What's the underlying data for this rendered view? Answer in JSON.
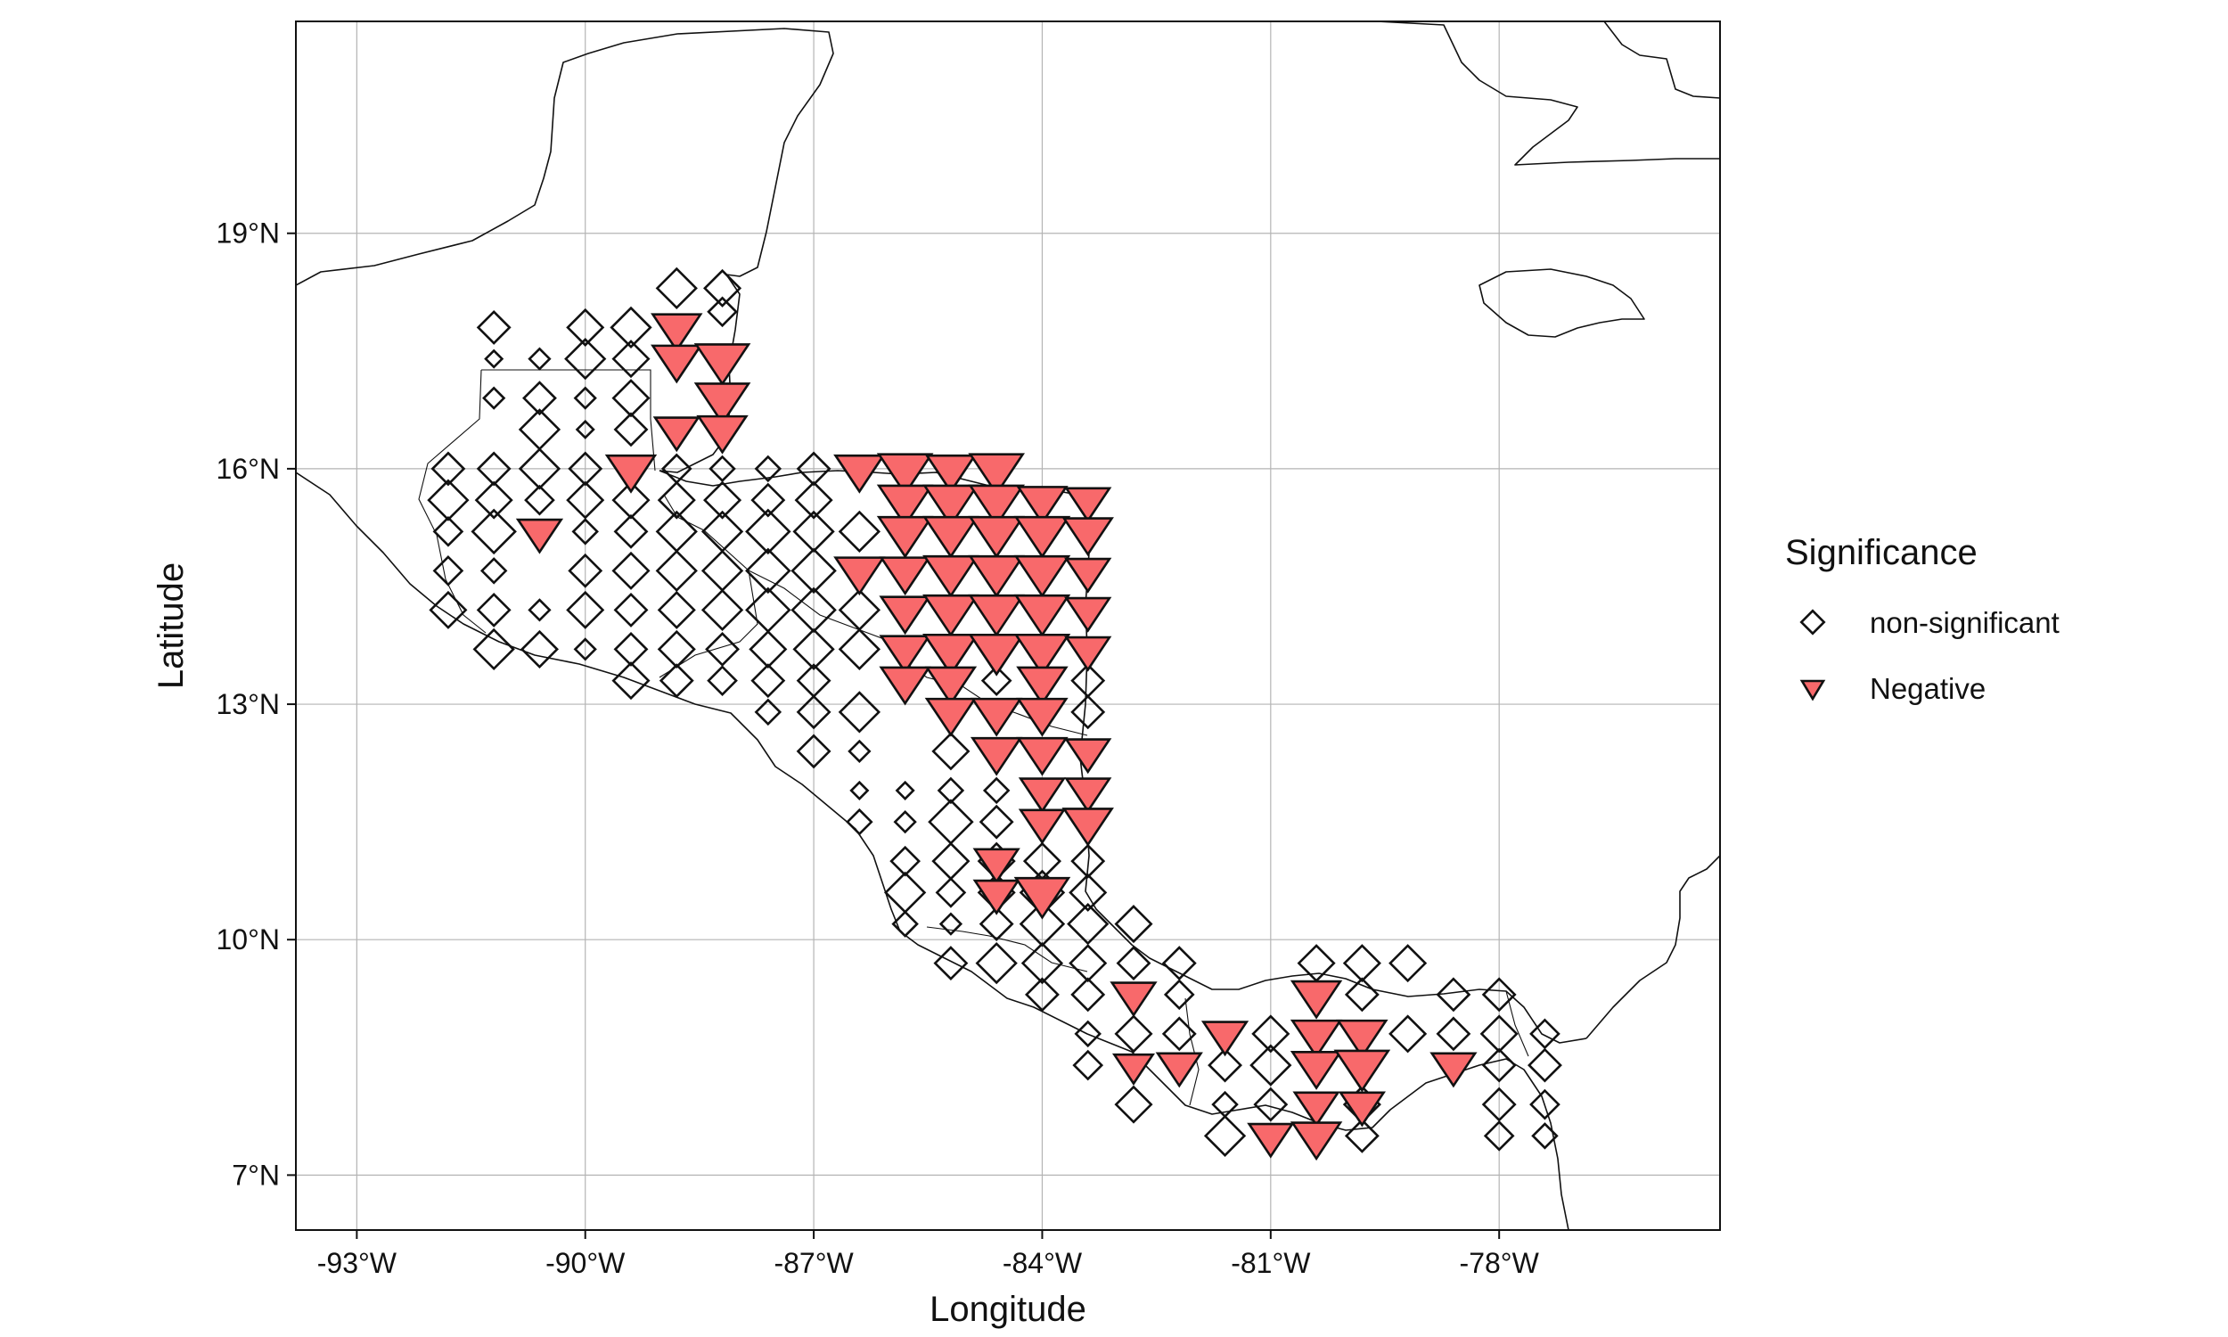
{
  "chart_data": {
    "type": "scatter",
    "xlabel": "Longitude",
    "ylabel": "Latitude",
    "xlim": [
      -93.8,
      -75.1
    ],
    "ylim": [
      6.3,
      21.7
    ],
    "x_ticks": [
      -93,
      -90,
      -87,
      -84,
      -81,
      -78
    ],
    "x_tick_labels": [
      "-93°W",
      "-90°W",
      "-87°W",
      "-84°W",
      "-81°W",
      "-78°W"
    ],
    "y_ticks": [
      7,
      10,
      13,
      16,
      19
    ],
    "y_tick_labels": [
      "7°N",
      "10°N",
      "13°N",
      "16°N",
      "19°N"
    ],
    "grid": true,
    "legend": {
      "title": "Significance",
      "position": "right",
      "entries": [
        {
          "label": "non-significant",
          "shape": "diamond",
          "fill": "none"
        },
        {
          "label": "Negative",
          "shape": "triangle-down",
          "fill": "#F8696B"
        }
      ]
    },
    "colors": {
      "negative": "#F8696B",
      "outline": "#111111",
      "grid": "#b4b4b4"
    },
    "point_size_scale": "magnitude 0.3 (small) to 1.0 (large)",
    "series": [
      {
        "name": "non-significant",
        "shape": "diamond",
        "points": [
          [
            -88.8,
            18.3,
            0.8
          ],
          [
            -88.2,
            18.3,
            0.7
          ],
          [
            -88.2,
            18.0,
            0.5
          ],
          [
            -91.2,
            17.8,
            0.6
          ],
          [
            -90.0,
            17.8,
            0.7
          ],
          [
            -89.4,
            17.8,
            0.8
          ],
          [
            -91.2,
            17.4,
            0.2
          ],
          [
            -90.6,
            17.4,
            0.3
          ],
          [
            -90.0,
            17.4,
            0.8
          ],
          [
            -89.4,
            17.4,
            0.7
          ],
          [
            -91.2,
            16.9,
            0.3
          ],
          [
            -90.6,
            16.9,
            0.6
          ],
          [
            -90.0,
            16.9,
            0.3
          ],
          [
            -89.4,
            16.9,
            0.7
          ],
          [
            -90.6,
            16.5,
            0.8
          ],
          [
            -90.0,
            16.5,
            0.2
          ],
          [
            -89.4,
            16.5,
            0.6
          ],
          [
            -91.8,
            16.0,
            0.6
          ],
          [
            -91.2,
            16.0,
            0.6
          ],
          [
            -90.6,
            16.0,
            0.8
          ],
          [
            -90.0,
            16.0,
            0.6
          ],
          [
            -88.8,
            16.0,
            0.5
          ],
          [
            -88.2,
            16.0,
            0.4
          ],
          [
            -87.6,
            16.0,
            0.4
          ],
          [
            -87.0,
            16.0,
            0.6
          ],
          [
            -91.8,
            15.6,
            0.8
          ],
          [
            -91.2,
            15.6,
            0.7
          ],
          [
            -90.6,
            15.6,
            0.5
          ],
          [
            -90.0,
            15.6,
            0.7
          ],
          [
            -89.4,
            15.6,
            0.7
          ],
          [
            -88.8,
            15.6,
            0.7
          ],
          [
            -88.2,
            15.6,
            0.7
          ],
          [
            -87.6,
            15.6,
            0.6
          ],
          [
            -87.0,
            15.6,
            0.7
          ],
          [
            -91.8,
            15.2,
            0.5
          ],
          [
            -91.2,
            15.2,
            0.9
          ],
          [
            -90.0,
            15.2,
            0.4
          ],
          [
            -89.4,
            15.2,
            0.6
          ],
          [
            -88.8,
            15.2,
            0.8
          ],
          [
            -88.2,
            15.2,
            0.8
          ],
          [
            -87.6,
            15.2,
            0.9
          ],
          [
            -87.0,
            15.2,
            0.8
          ],
          [
            -86.4,
            15.2,
            0.8
          ],
          [
            -91.8,
            14.7,
            0.5
          ],
          [
            -91.2,
            14.7,
            0.4
          ],
          [
            -90.0,
            14.7,
            0.6
          ],
          [
            -89.4,
            14.7,
            0.7
          ],
          [
            -88.8,
            14.7,
            0.8
          ],
          [
            -88.2,
            14.7,
            0.8
          ],
          [
            -87.6,
            14.7,
            0.9
          ],
          [
            -87.0,
            14.7,
            0.9
          ],
          [
            -91.8,
            14.2,
            0.7
          ],
          [
            -91.2,
            14.2,
            0.6
          ],
          [
            -90.6,
            14.2,
            0.3
          ],
          [
            -90.0,
            14.2,
            0.7
          ],
          [
            -89.4,
            14.2,
            0.6
          ],
          [
            -88.8,
            14.2,
            0.7
          ],
          [
            -88.2,
            14.2,
            0.8
          ],
          [
            -87.6,
            14.2,
            0.9
          ],
          [
            -87.0,
            14.2,
            0.9
          ],
          [
            -86.4,
            14.2,
            0.8
          ],
          [
            -91.2,
            13.7,
            0.8
          ],
          [
            -90.6,
            13.7,
            0.7
          ],
          [
            -90.0,
            13.7,
            0.3
          ],
          [
            -89.4,
            13.7,
            0.6
          ],
          [
            -88.8,
            13.7,
            0.7
          ],
          [
            -88.2,
            13.7,
            0.6
          ],
          [
            -87.6,
            13.7,
            0.7
          ],
          [
            -87.0,
            13.7,
            0.8
          ],
          [
            -86.4,
            13.7,
            0.8
          ],
          [
            -89.4,
            13.3,
            0.7
          ],
          [
            -88.8,
            13.3,
            0.6
          ],
          [
            -88.2,
            13.3,
            0.5
          ],
          [
            -87.6,
            13.3,
            0.6
          ],
          [
            -87.0,
            13.3,
            0.6
          ],
          [
            -84.6,
            13.3,
            0.5
          ],
          [
            -83.4,
            13.3,
            0.6
          ],
          [
            -87.6,
            12.9,
            0.4
          ],
          [
            -87.0,
            12.9,
            0.6
          ],
          [
            -86.4,
            12.9,
            0.8
          ],
          [
            -83.4,
            12.9,
            0.6
          ],
          [
            -87.0,
            12.4,
            0.6
          ],
          [
            -86.4,
            12.4,
            0.3
          ],
          [
            -85.2,
            12.4,
            0.7
          ],
          [
            -86.4,
            11.9,
            0.2
          ],
          [
            -85.8,
            11.9,
            0.2
          ],
          [
            -85.2,
            11.9,
            0.4
          ],
          [
            -84.6,
            11.9,
            0.4
          ],
          [
            -86.4,
            11.5,
            0.4
          ],
          [
            -85.8,
            11.5,
            0.3
          ],
          [
            -85.2,
            11.5,
            0.9
          ],
          [
            -84.6,
            11.5,
            0.6
          ],
          [
            -85.8,
            11.0,
            0.5
          ],
          [
            -85.2,
            11.0,
            0.7
          ],
          [
            -84.6,
            11.0,
            0.7
          ],
          [
            -84.0,
            11.0,
            0.7
          ],
          [
            -83.4,
            11.0,
            0.6
          ],
          [
            -85.8,
            10.6,
            0.8
          ],
          [
            -85.2,
            10.6,
            0.5
          ],
          [
            -84.6,
            10.6,
            0.7
          ],
          [
            -84.0,
            10.6,
            0.9
          ],
          [
            -83.4,
            10.6,
            0.7
          ],
          [
            -85.8,
            10.2,
            0.4
          ],
          [
            -85.2,
            10.2,
            0.3
          ],
          [
            -84.6,
            10.2,
            0.6
          ],
          [
            -84.0,
            10.2,
            0.9
          ],
          [
            -83.4,
            10.2,
            0.8
          ],
          [
            -82.8,
            10.2,
            0.7
          ],
          [
            -85.2,
            9.7,
            0.6
          ],
          [
            -84.6,
            9.7,
            0.8
          ],
          [
            -84.0,
            9.7,
            0.8
          ],
          [
            -83.4,
            9.7,
            0.7
          ],
          [
            -82.8,
            9.7,
            0.6
          ],
          [
            -82.2,
            9.7,
            0.6
          ],
          [
            -84.0,
            9.3,
            0.6
          ],
          [
            -83.4,
            9.3,
            0.6
          ],
          [
            -82.2,
            9.3,
            0.5
          ],
          [
            -80.4,
            9.7,
            0.7
          ],
          [
            -79.8,
            9.7,
            0.7
          ],
          [
            -79.2,
            9.7,
            0.7
          ],
          [
            -83.4,
            8.8,
            0.4
          ],
          [
            -82.8,
            8.8,
            0.7
          ],
          [
            -82.2,
            8.8,
            0.6
          ],
          [
            -81.0,
            8.8,
            0.7
          ],
          [
            -79.8,
            9.3,
            0.6
          ],
          [
            -78.6,
            9.3,
            0.6
          ],
          [
            -78.0,
            9.3,
            0.6
          ],
          [
            -83.4,
            8.4,
            0.5
          ],
          [
            -81.6,
            8.4,
            0.6
          ],
          [
            -81.0,
            8.4,
            0.8
          ],
          [
            -79.2,
            8.8,
            0.7
          ],
          [
            -78.6,
            8.8,
            0.6
          ],
          [
            -78.0,
            8.8,
            0.7
          ],
          [
            -77.4,
            8.8,
            0.5
          ],
          [
            -82.8,
            7.9,
            0.7
          ],
          [
            -81.6,
            7.9,
            0.4
          ],
          [
            -81.0,
            7.9,
            0.6
          ],
          [
            -79.8,
            7.9,
            0.7
          ],
          [
            -78.0,
            8.4,
            0.6
          ],
          [
            -77.4,
            8.4,
            0.6
          ],
          [
            -81.6,
            7.5,
            0.8
          ],
          [
            -79.8,
            7.5,
            0.6
          ],
          [
            -78.0,
            7.9,
            0.6
          ],
          [
            -77.4,
            7.9,
            0.5
          ],
          [
            -78.0,
            7.5,
            0.5
          ],
          [
            -77.4,
            7.5,
            0.4
          ]
        ]
      },
      {
        "name": "Negative",
        "shape": "triangle-down",
        "points": [
          [
            -88.8,
            17.8,
            0.8
          ],
          [
            -88.8,
            17.4,
            0.8
          ],
          [
            -88.2,
            17.4,
            0.9
          ],
          [
            -88.2,
            16.9,
            0.9
          ],
          [
            -88.8,
            16.5,
            0.7
          ],
          [
            -88.2,
            16.5,
            0.8
          ],
          [
            -89.4,
            16.0,
            0.8
          ],
          [
            -90.6,
            15.2,
            0.7
          ],
          [
            -86.4,
            16.0,
            0.8
          ],
          [
            -85.8,
            16.0,
            0.9
          ],
          [
            -85.2,
            16.0,
            0.8
          ],
          [
            -84.6,
            16.0,
            0.9
          ],
          [
            -85.8,
            15.6,
            0.9
          ],
          [
            -85.2,
            15.6,
            0.9
          ],
          [
            -84.6,
            15.6,
            0.9
          ],
          [
            -84.0,
            15.6,
            0.8
          ],
          [
            -83.4,
            15.6,
            0.7
          ],
          [
            -85.8,
            15.2,
            0.9
          ],
          [
            -85.2,
            15.2,
            0.9
          ],
          [
            -84.6,
            15.2,
            0.9
          ],
          [
            -84.0,
            15.2,
            0.9
          ],
          [
            -83.4,
            15.2,
            0.8
          ],
          [
            -86.4,
            14.7,
            0.8
          ],
          [
            -85.8,
            14.7,
            0.8
          ],
          [
            -85.2,
            14.7,
            0.9
          ],
          [
            -84.6,
            14.7,
            0.9
          ],
          [
            -84.0,
            14.7,
            0.9
          ],
          [
            -83.4,
            14.7,
            0.7
          ],
          [
            -85.8,
            14.2,
            0.8
          ],
          [
            -85.2,
            14.2,
            0.9
          ],
          [
            -84.6,
            14.2,
            0.9
          ],
          [
            -84.0,
            14.2,
            0.9
          ],
          [
            -83.4,
            14.2,
            0.7
          ],
          [
            -85.8,
            13.7,
            0.8
          ],
          [
            -85.2,
            13.7,
            0.9
          ],
          [
            -84.6,
            13.7,
            0.9
          ],
          [
            -84.0,
            13.7,
            0.9
          ],
          [
            -83.4,
            13.7,
            0.7
          ],
          [
            -85.8,
            13.3,
            0.8
          ],
          [
            -85.2,
            13.3,
            0.8
          ],
          [
            -84.0,
            13.3,
            0.8
          ],
          [
            -85.2,
            12.9,
            0.8
          ],
          [
            -84.6,
            12.9,
            0.8
          ],
          [
            -84.0,
            12.9,
            0.8
          ],
          [
            -84.6,
            12.4,
            0.8
          ],
          [
            -84.0,
            12.4,
            0.8
          ],
          [
            -83.4,
            12.4,
            0.7
          ],
          [
            -84.0,
            11.9,
            0.7
          ],
          [
            -83.4,
            11.9,
            0.7
          ],
          [
            -84.0,
            11.5,
            0.7
          ],
          [
            -83.4,
            11.5,
            0.8
          ],
          [
            -84.6,
            11.0,
            0.7
          ],
          [
            -84.6,
            10.6,
            0.7
          ],
          [
            -84.0,
            10.6,
            0.9
          ],
          [
            -82.8,
            9.3,
            0.7
          ],
          [
            -82.8,
            8.4,
            0.6
          ],
          [
            -82.2,
            8.4,
            0.7
          ],
          [
            -81.6,
            8.8,
            0.7
          ],
          [
            -80.4,
            9.3,
            0.8
          ],
          [
            -80.4,
            8.8,
            0.8
          ],
          [
            -79.8,
            8.8,
            0.8
          ],
          [
            -80.4,
            8.4,
            0.8
          ],
          [
            -79.8,
            8.4,
            0.9
          ],
          [
            -78.6,
            8.4,
            0.7
          ],
          [
            -80.4,
            7.9,
            0.7
          ],
          [
            -79.8,
            7.9,
            0.7
          ],
          [
            -81.0,
            7.5,
            0.7
          ],
          [
            -80.4,
            7.5,
            0.8
          ]
        ]
      }
    ]
  }
}
